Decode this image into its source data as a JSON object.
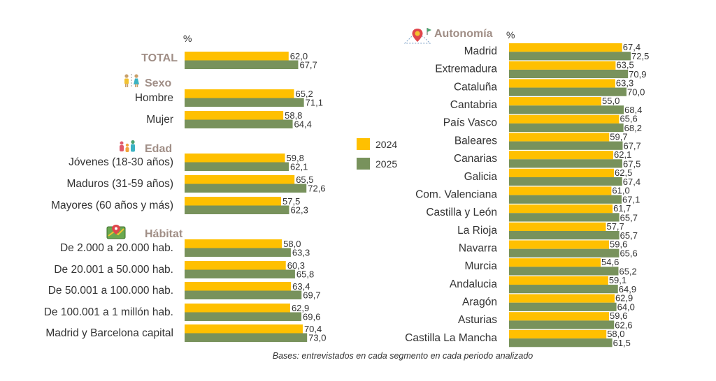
{
  "colors": {
    "y2024": "#ffc000",
    "y2025": "#78925c",
    "group_label": "#a08e86"
  },
  "note": "Bases: entrevistados en cada segmento en cada periodo analizado",
  "chart_data": [
    {
      "type": "bar",
      "orientation": "horizontal",
      "title": "",
      "unit_label": "%",
      "xlim": [
        0,
        80
      ],
      "grid": false,
      "legend_position": "center-right",
      "series_names": [
        "2024",
        "2025"
      ],
      "groups": [
        {
          "label": "TOTAL",
          "icon": "",
          "categories": [
            {
              "label": "",
              "v2024": 62.0,
              "v2025": 67.7,
              "d2024": "62,0",
              "d2025": "67,7"
            }
          ]
        },
        {
          "label": "Sexo",
          "icon": "gender-icon",
          "categories": [
            {
              "label": "Hombre",
              "v2024": 65.2,
              "v2025": 71.1,
              "d2024": "65,2",
              "d2025": "71,1"
            },
            {
              "label": "Mujer",
              "v2024": 58.8,
              "v2025": 64.4,
              "d2024": "58,8",
              "d2025": "64,4"
            }
          ]
        },
        {
          "label": "Edad",
          "icon": "family-icon",
          "categories": [
            {
              "label": "Jóvenes (18-30 años)",
              "v2024": 59.8,
              "v2025": 62.1,
              "d2024": "59,8",
              "d2025": "62,1"
            },
            {
              "label": "Maduros (31-59 años)",
              "v2024": 65.5,
              "v2025": 72.6,
              "d2024": "65,5",
              "d2025": "72,6"
            },
            {
              "label": "Mayores (60 años y más)",
              "v2024": 57.5,
              "v2025": 62.3,
              "d2024": "57,5",
              "d2025": "62,3"
            }
          ]
        },
        {
          "label": "Hábitat",
          "icon": "map-pin-icon",
          "categories": [
            {
              "label": "De 2.000 a 20.000 hab.",
              "v2024": 58.0,
              "v2025": 63.3,
              "d2024": "58,0",
              "d2025": "63,3"
            },
            {
              "label": "De 20.001 a 50.000 hab.",
              "v2024": 60.3,
              "v2025": 65.8,
              "d2024": "60,3",
              "d2025": "65,8"
            },
            {
              "label": "De 50.001 a 100.000 hab.",
              "v2024": 63.4,
              "v2025": 69.7,
              "d2024": "63,4",
              "d2025": "69,7"
            },
            {
              "label": "De 100.001 a 1 millón hab.",
              "v2024": 62.9,
              "v2025": 69.6,
              "d2024": "62,9",
              "d2025": "69,6"
            },
            {
              "label": "Madrid y Barcelona capital",
              "v2024": 70.4,
              "v2025": 73.0,
              "d2024": "70,4",
              "d2025": "73,0"
            }
          ]
        }
      ]
    },
    {
      "type": "bar",
      "orientation": "horizontal",
      "title": "Autonomía",
      "unit_label": "%",
      "xlim": [
        0,
        80
      ],
      "grid": false,
      "series_names": [
        "2024",
        "2025"
      ],
      "categories": [
        {
          "label": "Madrid",
          "v2024": 67.4,
          "v2025": 72.5,
          "d2024": "67,4",
          "d2025": "72,5"
        },
        {
          "label": "Extremadura",
          "v2024": 63.5,
          "v2025": 70.9,
          "d2024": "63,5",
          "d2025": "70,9"
        },
        {
          "label": "Cataluña",
          "v2024": 63.3,
          "v2025": 70.0,
          "d2024": "63,3",
          "d2025": "70,0"
        },
        {
          "label": "Cantabria",
          "v2024": 55.0,
          "v2025": 68.4,
          "d2024": "55,0",
          "d2025": "68,4"
        },
        {
          "label": "País Vasco",
          "v2024": 65.6,
          "v2025": 68.2,
          "d2024": "65,6",
          "d2025": "68,2"
        },
        {
          "label": "Baleares",
          "v2024": 59.7,
          "v2025": 67.7,
          "d2024": "59,7",
          "d2025": "67,7"
        },
        {
          "label": "Canarias",
          "v2024": 62.1,
          "v2025": 67.5,
          "d2024": "62,1",
          "d2025": "67,5"
        },
        {
          "label": "Galicia",
          "v2024": 62.5,
          "v2025": 67.4,
          "d2024": "62,5",
          "d2025": "67,4"
        },
        {
          "label": "Com. Valenciana",
          "v2024": 61.0,
          "v2025": 67.1,
          "d2024": "61,0",
          "d2025": "67,1"
        },
        {
          "label": "Castilla y León",
          "v2024": 61.7,
          "v2025": 65.7,
          "d2024": "61,7",
          "d2025": "65,7"
        },
        {
          "label": "La Rioja",
          "v2024": 57.7,
          "v2025": 65.7,
          "d2024": "57,7",
          "d2025": "65,7"
        },
        {
          "label": "Navarra",
          "v2024": 59.6,
          "v2025": 65.6,
          "d2024": "59,6",
          "d2025": "65,6"
        },
        {
          "label": "Murcia",
          "v2024": 54.6,
          "v2025": 65.2,
          "d2024": "54,6",
          "d2025": "65,2"
        },
        {
          "label": "Andalucia",
          "v2024": 59.1,
          "v2025": 64.9,
          "d2024": "59,1",
          "d2025": "64,9"
        },
        {
          "label": "Aragón",
          "v2024": 62.9,
          "v2025": 64.0,
          "d2024": "62,9",
          "d2025": "64,0"
        },
        {
          "label": "Asturias",
          "v2024": 59.6,
          "v2025": 62.6,
          "d2024": "59,6",
          "d2025": "62,6"
        },
        {
          "label": "Castilla La Mancha",
          "v2024": 58.0,
          "v2025": 61.5,
          "d2024": "58,0",
          "d2025": "61,5"
        }
      ]
    }
  ]
}
